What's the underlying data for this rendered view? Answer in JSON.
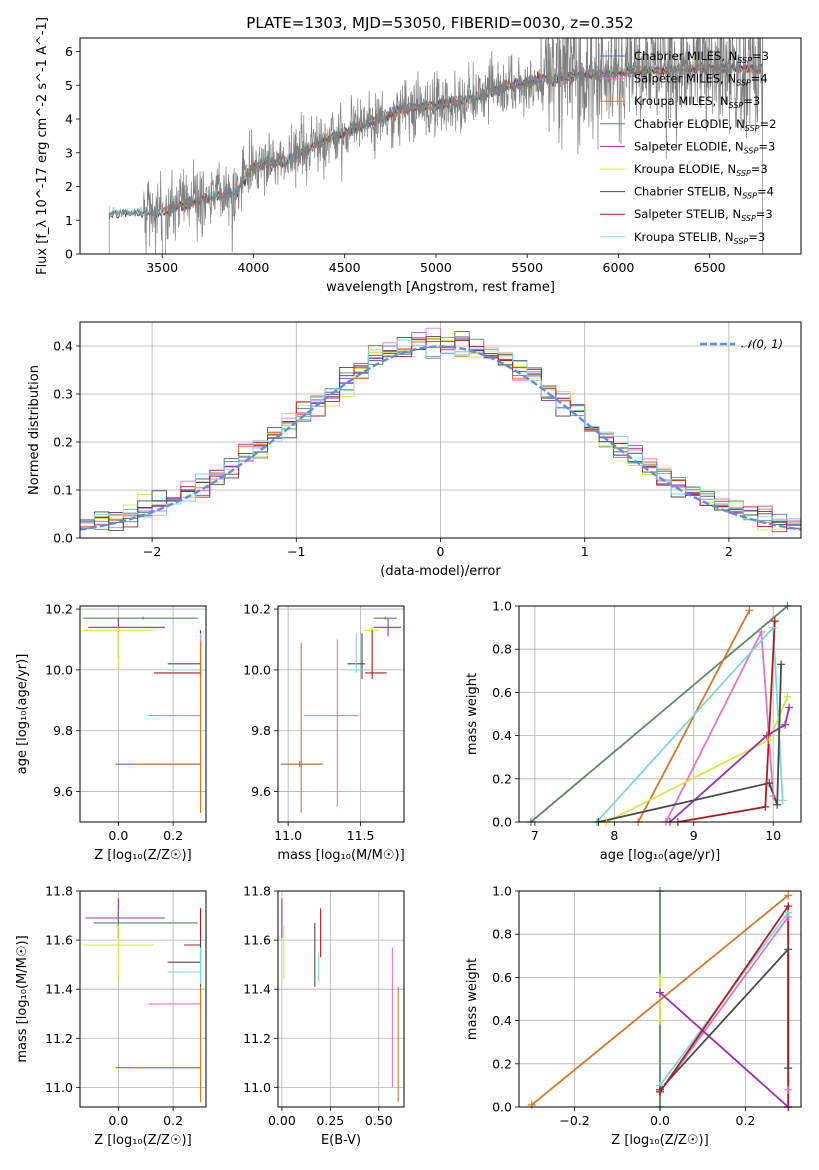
{
  "figure": {
    "title": "PLATE=1303, MJD=53050, FIBERID=0030, z=0.352"
  },
  "colors": {
    "Chabrier MILES": "#5a6fd6",
    "Salpeter MILES": "#e377c2",
    "Kroupa MILES": "#d9762a",
    "Chabrier ELODIE": "#5b8a64",
    "Salpeter ELODIE": "#9b2fb0",
    "Kroupa ELODIE": "#d4e84a",
    "Chabrier STELIB": "#4a4a4a",
    "Salpeter STELIB": "#b01c1c",
    "Kroupa STELIB": "#7fd6e0",
    "data": "#7f7f7f",
    "normal": "#5b8ee6"
  },
  "chart_data": [
    {
      "id": "spectrum",
      "type": "line",
      "title": "PLATE=1303, MJD=53050, FIBERID=0030, z=0.352",
      "xlabel": "wavelength [Angstrom, rest frame]",
      "ylabel": "Flux [f_λ 10^-17 erg cm^-2 s^-1 A^-1]",
      "xlim": [
        3050,
        7000
      ],
      "ylim": [
        0,
        6.4
      ],
      "xticks": [
        3500,
        4000,
        4500,
        5000,
        5500,
        6000,
        6500
      ],
      "yticks": [
        0,
        1,
        2,
        3,
        4,
        5,
        6
      ],
      "grid": false,
      "legend_position": "top-right",
      "series": [
        {
          "name": "Chabrier MILES, N_SSP=3",
          "key": "Chabrier MILES"
        },
        {
          "name": "Salpeter MILES, N_SSP=4",
          "key": "Salpeter MILES"
        },
        {
          "name": "Kroupa MILES, N_SSP=3",
          "key": "Kroupa MILES"
        },
        {
          "name": "Chabrier ELODIE, N_SSP=2",
          "key": "Chabrier ELODIE"
        },
        {
          "name": "Salpeter ELODIE, N_SSP=3",
          "key": "Salpeter ELODIE"
        },
        {
          "name": "Kroupa ELODIE, N_SSP=3",
          "key": "Kroupa ELODIE"
        },
        {
          "name": "Chabrier STELIB, N_SSP=4",
          "key": "Chabrier STELIB"
        },
        {
          "name": "Salpeter STELIB, N_SSP=3",
          "key": "Salpeter STELIB"
        },
        {
          "name": "Kroupa STELIB, N_SSP=3",
          "key": "Kroupa STELIB"
        }
      ],
      "data_spectrum": {
        "x_start": 3210,
        "x_end": 6790,
        "continuum_x": [
          3210,
          3300,
          3400,
          3500,
          3700,
          3900,
          4000,
          4200,
          4400,
          4600,
          4800,
          5000,
          5200,
          5400,
          5600,
          5800,
          6000,
          6200,
          6400,
          6600,
          6790
        ],
        "continuum_y": [
          1.2,
          1.25,
          1.2,
          1.25,
          1.6,
          1.8,
          2.6,
          2.8,
          3.4,
          3.8,
          4.3,
          4.4,
          4.6,
          5.0,
          5.2,
          5.3,
          5.4,
          5.45,
          5.5,
          5.5,
          5.5
        ]
      }
    },
    {
      "id": "residuals",
      "type": "line",
      "xlabel": "(data-model)/error",
      "ylabel": "Normed distribution",
      "xlim": [
        -2.5,
        2.5
      ],
      "ylim": [
        0,
        0.45
      ],
      "xticks": [
        -2,
        -1,
        0,
        1,
        2
      ],
      "yticks": [
        0.0,
        0.1,
        0.2,
        0.3,
        0.4
      ],
      "grid": true,
      "legend_position": "top-right",
      "legend_label": "𝒩(0, 1)",
      "bin_width": 0.1,
      "bin_start": -2.5,
      "normal": {
        "mean": 0,
        "sigma": 1
      }
    },
    {
      "id": "age-metallicity",
      "type": "scatter",
      "xlabel": "Z [log₁₀(Z/Z☉)]",
      "ylabel": "age  [log₁₀(age/yr)]",
      "xlim": [
        -0.14,
        0.32
      ],
      "ylim": [
        9.5,
        10.21
      ],
      "xticks": [
        0.0,
        0.2
      ],
      "yticks": [
        9.6,
        9.8,
        10.0,
        10.2
      ],
      "grid": true,
      "points": [
        {
          "key": "Chabrier ELODIE",
          "x": 0.09,
          "xerr": [
            0.22,
            0.2
          ],
          "y": 10.17,
          "yerr": [
            0.005,
            0.005
          ]
        },
        {
          "key": "Salpeter ELODIE",
          "x": 0.0,
          "xerr": [
            0.11,
            0.17
          ],
          "y": 10.14,
          "yerr": [
            0.1,
            0.03
          ]
        },
        {
          "key": "Kroupa ELODIE",
          "x": 0.0,
          "xerr": [
            0.13,
            0.13
          ],
          "y": 10.13,
          "yerr": [
            0.13,
            0.01
          ]
        },
        {
          "key": "Chabrier STELIB",
          "x": 0.3,
          "xerr": [
            0.12,
            0.0
          ],
          "y": 10.02,
          "yerr": [
            0.05,
            0.1
          ]
        },
        {
          "key": "Salpeter STELIB",
          "x": 0.3,
          "xerr": [
            0.17,
            0.0
          ],
          "y": 9.99,
          "yerr": [
            0.01,
            0.14
          ]
        },
        {
          "key": "Kroupa STELIB",
          "x": 0.3,
          "xerr": [
            0.12,
            0.0
          ],
          "y": 10.0,
          "yerr": [
            0.01,
            0.12
          ]
        },
        {
          "key": "Salpeter MILES",
          "x": 0.3,
          "xerr": [
            0.19,
            0.0
          ],
          "y": 9.85,
          "yerr": [
            0.3,
            0.25
          ]
        },
        {
          "key": "Chabrier MILES",
          "x": 0.3,
          "xerr": [
            0.31,
            0.0
          ],
          "y": 9.69,
          "yerr": [
            0.01,
            0.01
          ]
        },
        {
          "key": "Kroupa MILES",
          "x": 0.3,
          "xerr": [
            0.25,
            0.0
          ],
          "y": 9.69,
          "yerr": [
            0.16,
            0.4
          ]
        }
      ]
    },
    {
      "id": "age-mass",
      "type": "scatter",
      "xlabel": "mass [log₁₀(M/M☉)]",
      "ylabel": "",
      "xlim": [
        10.93,
        11.8
      ],
      "ylim": [
        9.5,
        10.21
      ],
      "xticks": [
        11.0,
        11.5
      ],
      "yticks": [
        9.6,
        9.8,
        10.0,
        10.2
      ],
      "grid": true,
      "points": [
        {
          "key": "Chabrier ELODIE",
          "x": 11.67,
          "xerr": [
            0.08,
            0.08
          ],
          "y": 10.17,
          "yerr": [
            0.005,
            0.005
          ]
        },
        {
          "key": "Salpeter ELODIE",
          "x": 11.69,
          "xerr": [
            0.1,
            0.09
          ],
          "y": 10.14,
          "yerr": [
            0.03,
            0.03
          ]
        },
        {
          "key": "Kroupa ELODIE",
          "x": 11.58,
          "xerr": [
            0.06,
            0.05
          ],
          "y": 10.13,
          "yerr": [
            0.13,
            0.01
          ]
        },
        {
          "key": "Chabrier STELIB",
          "x": 11.51,
          "xerr": [
            0.1,
            0.02
          ],
          "y": 10.02,
          "yerr": [
            0.05,
            0.1
          ]
        },
        {
          "key": "Salpeter STELIB",
          "x": 11.58,
          "xerr": [
            0.05,
            0.1
          ],
          "y": 9.99,
          "yerr": [
            0.02,
            0.14
          ]
        },
        {
          "key": "Kroupa STELIB",
          "x": 11.47,
          "xerr": [
            0.05,
            0.1
          ],
          "y": 10.0,
          "yerr": [
            0.01,
            0.12
          ]
        },
        {
          "key": "Salpeter MILES",
          "x": 11.34,
          "xerr": [
            0.23,
            0.15
          ],
          "y": 9.85,
          "yerr": [
            0.3,
            0.25
          ]
        },
        {
          "key": "Chabrier MILES",
          "x": 11.08,
          "xerr": [
            0.13,
            0.16
          ],
          "y": 9.69,
          "yerr": [
            0.01,
            0.01
          ]
        },
        {
          "key": "Kroupa MILES",
          "x": 11.09,
          "xerr": [
            0.1,
            0.15
          ],
          "y": 9.69,
          "yerr": [
            0.16,
            0.4
          ]
        }
      ]
    },
    {
      "id": "weight-age",
      "type": "line",
      "xlabel": "age  [log₁₀(age/yr)]",
      "ylabel": "mass weight",
      "xlim": [
        6.8,
        10.35
      ],
      "ylim": [
        0,
        1.0
      ],
      "xticks": [
        7,
        8,
        9,
        10
      ],
      "yticks": [
        0.0,
        0.2,
        0.4,
        0.6,
        0.8,
        1.0
      ],
      "grid": true,
      "series": [
        {
          "key": "Chabrier ELODIE",
          "x": [
            6.95,
            10.18
          ],
          "y": [
            0.0,
            1.0
          ]
        },
        {
          "key": "Kroupa MILES",
          "x": [
            8.3,
            9.7
          ],
          "y": [
            0.0,
            0.98
          ]
        },
        {
          "key": "Salpeter MILES",
          "x": [
            8.65,
            9.85,
            10.0
          ],
          "y": [
            0.0,
            0.88,
            0.12
          ]
        },
        {
          "key": "Kroupa STELIB",
          "x": [
            7.78,
            10.0,
            10.12
          ],
          "y": [
            0.0,
            0.9,
            0.1
          ]
        },
        {
          "key": "Kroupa ELODIE",
          "x": [
            7.9,
            9.95,
            10.18
          ],
          "y": [
            0.0,
            0.38,
            0.58
          ]
        },
        {
          "key": "Salpeter ELODIE",
          "x": [
            8.7,
            9.92,
            10.15,
            10.2
          ],
          "y": [
            0.0,
            0.4,
            0.45,
            0.53
          ]
        },
        {
          "key": "Chabrier STELIB",
          "x": [
            7.8,
            9.95,
            10.05,
            10.1
          ],
          "y": [
            0.0,
            0.18,
            0.08,
            0.73
          ]
        },
        {
          "key": "Salpeter STELIB",
          "x": [
            8.8,
            9.9,
            10.02
          ],
          "y": [
            0.0,
            0.07,
            0.93
          ]
        }
      ]
    },
    {
      "id": "mass-metallicity",
      "type": "scatter",
      "xlabel": "Z [log₁₀(Z/Z☉)]",
      "ylabel": "mass [log₁₀(M/M☉)]",
      "xlim": [
        -0.14,
        0.32
      ],
      "ylim": [
        10.92,
        11.8
      ],
      "xticks": [
        0.0,
        0.2
      ],
      "yticks": [
        11.0,
        11.2,
        11.4,
        11.6,
        11.8
      ],
      "grid": true,
      "points": [
        {
          "key": "Salpeter ELODIE",
          "x": 0.0,
          "xerr": [
            0.12,
            0.17
          ],
          "y": 11.69,
          "yerr": [
            0.08,
            0.08
          ]
        },
        {
          "key": "Chabrier ELODIE",
          "x": 0.0,
          "xerr": [
            0.09,
            0.29
          ],
          "y": 11.67,
          "yerr": [
            0.06,
            0.05
          ]
        },
        {
          "key": "Salpeter STELIB",
          "x": 0.3,
          "xerr": [
            0.06,
            0.0
          ],
          "y": 11.58,
          "yerr": [
            0.05,
            0.15
          ]
        },
        {
          "key": "Kroupa ELODIE",
          "x": 0.0,
          "xerr": [
            0.13,
            0.13
          ],
          "y": 11.58,
          "yerr": [
            0.14,
            0.08
          ]
        },
        {
          "key": "Chabrier STELIB",
          "x": 0.3,
          "xerr": [
            0.12,
            0.0
          ],
          "y": 11.51,
          "yerr": [
            0.1,
            0.09
          ]
        },
        {
          "key": "Kroupa STELIB",
          "x": 0.3,
          "xerr": [
            0.12,
            0.0
          ],
          "y": 11.47,
          "yerr": [
            0.05,
            0.1
          ]
        },
        {
          "key": "Salpeter MILES",
          "x": 0.3,
          "xerr": [
            0.19,
            0.0
          ],
          "y": 11.34,
          "yerr": [
            0.05,
            0.05
          ]
        },
        {
          "key": "Chabrier MILES",
          "x": 0.3,
          "xerr": [
            0.31,
            0.0
          ],
          "y": 11.08,
          "yerr": [
            0.005,
            0.005
          ]
        },
        {
          "key": "Kroupa MILES",
          "x": 0.3,
          "xerr": [
            0.25,
            0.0
          ],
          "y": 11.08,
          "yerr": [
            0.14,
            0.33
          ]
        }
      ]
    },
    {
      "id": "mass-ebv",
      "type": "scatter",
      "xlabel": "E(B-V)",
      "ylabel": "",
      "xlim": [
        -0.02,
        0.63
      ],
      "ylim": [
        10.92,
        11.8
      ],
      "xticks": [
        0.0,
        0.25,
        0.5
      ],
      "yticks": [
        11.0,
        11.2,
        11.4,
        11.6,
        11.8
      ],
      "grid": true,
      "points": [
        {
          "key": "Salpeter ELODIE",
          "x": 0.0,
          "y": 11.69,
          "yerr": [
            0.08,
            0.08
          ]
        },
        {
          "key": "Kroupa ELODIE",
          "x": 0.01,
          "y": 11.58,
          "yerr": [
            0.14,
            0.08
          ]
        },
        {
          "key": "Chabrier STELIB",
          "x": 0.17,
          "y": 11.51,
          "yerr": [
            0.1,
            0.16
          ]
        },
        {
          "key": "Salpeter STELIB",
          "x": 0.2,
          "y": 11.58,
          "yerr": [
            0.05,
            0.15
          ]
        },
        {
          "key": "Kroupa STELIB",
          "x": 0.19,
          "y": 11.5,
          "yerr": [
            0.07,
            0.05
          ]
        },
        {
          "key": "Salpeter MILES",
          "x": 0.57,
          "y": 11.3,
          "yerr": [
            0.3,
            0.27
          ]
        },
        {
          "key": "Kroupa MILES",
          "x": 0.6,
          "y": 11.08,
          "yerr": [
            0.14,
            0.33
          ]
        }
      ]
    },
    {
      "id": "weight-metallicity",
      "type": "line",
      "xlabel": "Z [log₁₀(Z/Z☉)]",
      "ylabel": "mass weight",
      "xlim": [
        -0.33,
        0.33
      ],
      "ylim": [
        0,
        1.0
      ],
      "xticks": [
        -0.2,
        0.0,
        0.2
      ],
      "yticks": [
        0.0,
        0.2,
        0.4,
        0.6,
        0.8,
        1.0
      ],
      "grid": true,
      "series": [
        {
          "key": "Chabrier ELODIE",
          "x": [
            0.0,
            0.0
          ],
          "y": [
            1.0,
            0.0
          ]
        },
        {
          "key": "Kroupa ELODIE",
          "x": [
            0.0,
            0.0
          ],
          "y": [
            0.6,
            0.4
          ]
        },
        {
          "key": "Kroupa MILES",
          "x": [
            -0.3,
            0.3
          ],
          "y": [
            0.01,
            0.98
          ]
        },
        {
          "key": "Salpeter MILES",
          "x": [
            0.0,
            0.3,
            0.3
          ],
          "y": [
            0.07,
            0.88,
            0.08
          ]
        },
        {
          "key": "Kroupa STELIB",
          "x": [
            0.0,
            0.3,
            0.3
          ],
          "y": [
            0.1,
            0.9,
            0.0
          ]
        },
        {
          "key": "Salpeter ELODIE",
          "x": [
            0.0,
            0.3
          ],
          "y": [
            0.53,
            0.0
          ]
        },
        {
          "key": "Chabrier STELIB",
          "x": [
            0.0,
            0.3,
            0.3
          ],
          "y": [
            0.08,
            0.73,
            0.18
          ]
        },
        {
          "key": "Salpeter STELIB",
          "x": [
            0.0,
            0.3,
            0.3
          ],
          "y": [
            0.07,
            0.93,
            0.0
          ]
        }
      ]
    }
  ]
}
